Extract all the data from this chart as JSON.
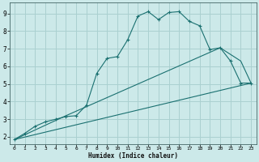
{
  "xlabel": "Humidex (Indice chaleur)",
  "bg_color": "#cce9e9",
  "grid_color": "#aad0d0",
  "line_color": "#1a7070",
  "xlim": [
    -0.5,
    23.5
  ],
  "ylim": [
    1.6,
    9.6
  ],
  "xticks": [
    0,
    1,
    2,
    3,
    4,
    5,
    6,
    7,
    8,
    9,
    10,
    11,
    12,
    13,
    14,
    15,
    16,
    17,
    18,
    19,
    20,
    21,
    22,
    23
  ],
  "yticks": [
    2,
    3,
    4,
    5,
    6,
    7,
    8,
    9
  ],
  "line1_x": [
    0,
    1,
    2,
    3,
    4,
    5,
    6,
    7,
    8,
    9,
    10,
    11,
    12,
    13,
    14,
    15,
    16,
    17,
    18,
    19,
    20,
    21,
    22,
    23
  ],
  "line1_y": [
    1.85,
    2.2,
    2.6,
    2.85,
    3.0,
    3.15,
    3.2,
    3.8,
    5.6,
    6.45,
    6.55,
    7.5,
    8.85,
    9.1,
    8.65,
    9.05,
    9.1,
    8.55,
    8.3,
    6.95,
    7.05,
    6.3,
    5.05,
    5.05
  ],
  "line2_x": [
    0,
    23
  ],
  "line2_y": [
    1.85,
    5.05
  ],
  "line3_x": [
    0,
    5,
    20,
    22,
    23
  ],
  "line3_y": [
    1.85,
    3.2,
    7.05,
    6.3,
    5.05
  ]
}
